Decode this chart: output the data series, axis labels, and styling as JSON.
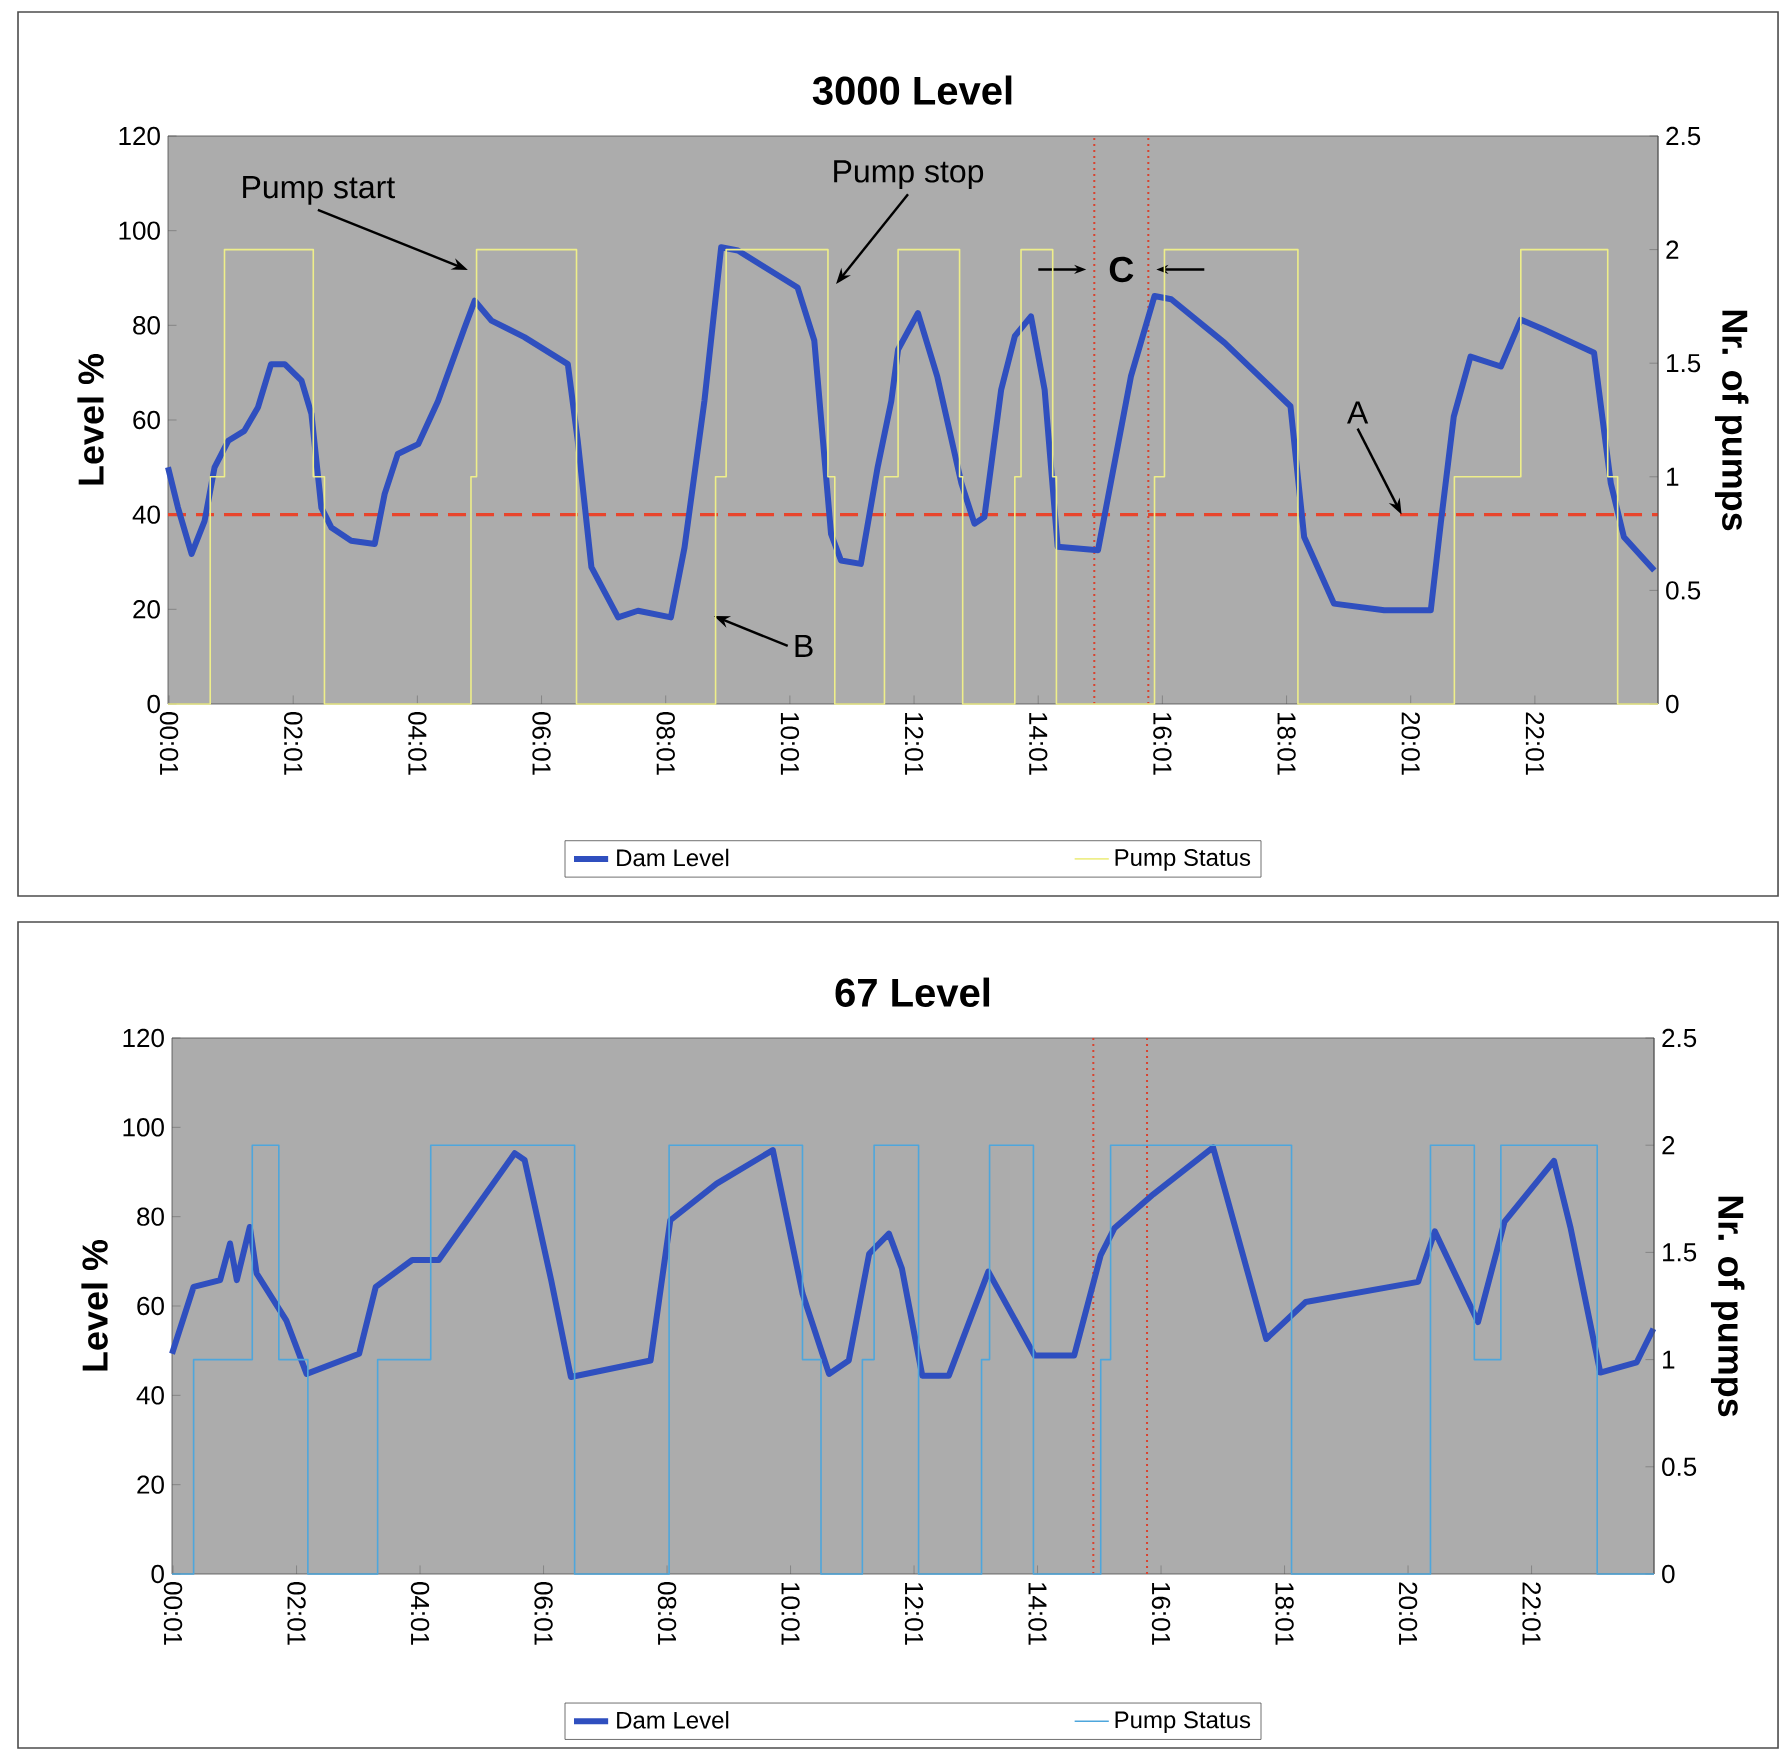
{
  "chart_data": [
    {
      "type": "line",
      "title": "3000 Level",
      "ylabel": "Level %",
      "y2label": "Nr. of pumps",
      "xlim": [
        0,
        24
      ],
      "xticks": [
        {
          "value": 0.0167,
          "label": "00:01"
        },
        {
          "value": 2.0167,
          "label": "02:01"
        },
        {
          "value": 4.0167,
          "label": "04:01"
        },
        {
          "value": 6.0167,
          "label": "06:01"
        },
        {
          "value": 8.0167,
          "label": "08:01"
        },
        {
          "value": 10.0167,
          "label": "10:01"
        },
        {
          "value": 12.0167,
          "label": "12:01"
        },
        {
          "value": 14.0167,
          "label": "14:01"
        },
        {
          "value": 16.0167,
          "label": "16:01"
        },
        {
          "value": 18.0167,
          "label": "18:01"
        },
        {
          "value": 20.0167,
          "label": "20:01"
        },
        {
          "value": 22.0167,
          "label": "22:01"
        }
      ],
      "ylim": [
        0,
        120
      ],
      "yticks": [
        0,
        20,
        40,
        60,
        80,
        100,
        120
      ],
      "y2lim": [
        0,
        2.5
      ],
      "y2ticks": [
        0,
        0.5,
        1,
        1.5,
        2,
        2.5
      ],
      "legend": "bottom",
      "series": [
        {
          "name": "Dam Level",
          "type": "line",
          "color": "#2f4fbf",
          "x": [
            0,
            0.16,
            0.38,
            0.59,
            0.75,
            0.97,
            1.23,
            1.45,
            1.66,
            1.88,
            2.15,
            2.31,
            2.47,
            2.63,
            2.95,
            3.33,
            3.49,
            3.7,
            4.03,
            4.35,
            4.78,
            4.94,
            5.21,
            5.74,
            6.44,
            6.6,
            6.82,
            7.25,
            7.57,
            8.1,
            8.32,
            8.64,
            8.91,
            9.18,
            10.14,
            10.41,
            10.68,
            10.84,
            11.16,
            11.43,
            11.65,
            11.76,
            12.08,
            12.39,
            12.78,
            12.99,
            13.15,
            13.42,
            13.64,
            13.9,
            14.12,
            14.33,
            14.98,
            15.51,
            15.89,
            16.16,
            17.02,
            18.08,
            18.3,
            18.78,
            19.59,
            20.34,
            20.5,
            20.71,
            20.98,
            21.47,
            21.79,
            22.16,
            22.97,
            23.24,
            23.45,
            23.94
          ],
          "values": [
            50,
            41.5,
            31.7,
            38.7,
            50,
            55.6,
            57.7,
            62.7,
            71.8,
            71.8,
            68.3,
            61.3,
            41.5,
            37.3,
            34.5,
            33.8,
            44.4,
            52.8,
            54.9,
            64,
            79.6,
            85.2,
            81,
            77.5,
            71.8,
            55.6,
            28.9,
            18.3,
            19.7,
            18.3,
            33.1,
            64,
            96.5,
            95.8,
            88,
            76.8,
            35.9,
            30.3,
            29.6,
            50,
            64,
            74.9,
            82.6,
            69.2,
            46.6,
            38.1,
            39.5,
            66.4,
            77.7,
            81.9,
            66.4,
            33.2,
            32.5,
            69.2,
            86.2,
            85.5,
            76.3,
            62.9,
            35.3,
            21.2,
            19.8,
            19.8,
            38.1,
            60.7,
            73.4,
            71.3,
            81.2,
            79.1,
            74.2,
            46.6,
            35.3,
            28.2
          ]
        },
        {
          "name": "Pump Status",
          "type": "step",
          "axis": "y2",
          "color": "#eeee8a",
          "x": [
            0,
            0.68,
            0.91,
            2.34,
            2.52,
            4.88,
            4.97,
            6.58,
            8.82,
            8.99,
            10.63,
            10.74,
            11.54,
            11.76,
            12.75,
            12.8,
            13.64,
            13.74,
            14.25,
            14.31,
            15.89,
            16.05,
            18.2,
            20.72,
            21.79,
            23.19,
            23.35,
            24
          ],
          "values": [
            0,
            1,
            2,
            1,
            0,
            1,
            2,
            0,
            1,
            2,
            1,
            0,
            1,
            2,
            1,
            0,
            1,
            2,
            1,
            0,
            1,
            2,
            0,
            1,
            2,
            1,
            0,
            0
          ]
        }
      ],
      "ref_lines": [
        {
          "axis": "y",
          "value": 40,
          "color": "#e8452c",
          "line_style": "dashed"
        },
        {
          "axis": "x",
          "value": 14.92,
          "color": "#d9432f",
          "line_style": "dotted"
        },
        {
          "axis": "x",
          "value": 15.79,
          "color": "#d9432f",
          "line_style": "dotted"
        }
      ],
      "annotations": [
        {
          "text": "Pump start",
          "x": 4.83,
          "y": 91.7
        },
        {
          "text": "Pump stop",
          "x": 10.76,
          "y": 88.7
        },
        {
          "text": "A",
          "x": 19.87,
          "y": 40
        },
        {
          "text": "B",
          "x": 8.79,
          "y": 18.6
        },
        "C"
      ]
    },
    {
      "type": "line",
      "title": "67 Level",
      "ylabel": "Level %",
      "y2label": "Nr. of pumps",
      "xlim": [
        0,
        24
      ],
      "xticks": [
        {
          "value": 0.0167,
          "label": "00:01"
        },
        {
          "value": 2.0167,
          "label": "02:01"
        },
        {
          "value": 4.0167,
          "label": "04:01"
        },
        {
          "value": 6.0167,
          "label": "06:01"
        },
        {
          "value": 8.0167,
          "label": "08:01"
        },
        {
          "value": 10.0167,
          "label": "10:01"
        },
        {
          "value": 12.0167,
          "label": "12:01"
        },
        {
          "value": 14.0167,
          "label": "14:01"
        },
        {
          "value": 16.0167,
          "label": "16:01"
        },
        {
          "value": 18.0167,
          "label": "18:01"
        },
        {
          "value": 20.0167,
          "label": "20:01"
        },
        {
          "value": 22.0167,
          "label": "22:01"
        }
      ],
      "ylim": [
        0,
        120
      ],
      "yticks": [
        0,
        20,
        40,
        60,
        80,
        100,
        120
      ],
      "y2lim": [
        0,
        2.5
      ],
      "y2ticks": [
        0,
        0.5,
        1,
        1.5,
        2,
        2.5
      ],
      "legend": "bottom",
      "series": [
        {
          "name": "Dam Level",
          "type": "line",
          "color": "#2f4fbf",
          "x": [
            0,
            0.35,
            0.78,
            0.94,
            1.05,
            1.26,
            1.37,
            1.85,
            2.18,
            3.03,
            3.3,
            3.89,
            4.32,
            5.55,
            5.71,
            6.14,
            6.46,
            7.75,
            8.07,
            8.82,
            9.73,
            10.21,
            10.64,
            10.96,
            11.29,
            11.61,
            11.82,
            12.15,
            12.58,
            13.22,
            13.97,
            14.61,
            15.04,
            15.26,
            15.89,
            16.86,
            17.72,
            18.36,
            20.18,
            20.45,
            21.15,
            21.58,
            22.38,
            22.65,
            23.13,
            23.72,
            23.99
          ],
          "values": [
            49.3,
            64.3,
            65.8,
            74,
            65.8,
            77.7,
            67.3,
            56.8,
            44.8,
            49.3,
            64.3,
            70.3,
            70.3,
            94.2,
            92.7,
            65.8,
            44.1,
            47.8,
            79.2,
            87.4,
            94.9,
            62.8,
            44.8,
            47.8,
            71.7,
            76.2,
            68.4,
            44.4,
            44.4,
            67.7,
            48.9,
            48.9,
            71.4,
            77.4,
            85,
            95.5,
            52.6,
            60.9,
            65.4,
            76.7,
            56.4,
            78.9,
            92.5,
            77.4,
            45.1,
            47.4,
            54.9
          ]
        },
        {
          "name": "Pump Status",
          "type": "step",
          "axis": "y2",
          "color": "#4ea6dc",
          "x": [
            0,
            0.35,
            1.3,
            1.73,
            2.2,
            3.33,
            4.19,
            6.52,
            8.05,
            10.21,
            10.51,
            11.18,
            11.37,
            12.09,
            13.11,
            13.24,
            13.95,
            15.04,
            15.2,
            18.13,
            20.38,
            21.09,
            21.52,
            23.08,
            24
          ],
          "values": [
            0,
            1,
            2,
            1,
            0,
            1,
            2,
            0,
            2,
            1,
            0,
            1,
            2,
            0,
            1,
            2,
            0,
            1,
            2,
            0,
            2,
            1,
            2,
            0,
            0
          ]
        }
      ],
      "ref_lines": [
        {
          "axis": "x",
          "value": 14.92,
          "color": "#d9432f",
          "line_style": "dotted"
        },
        {
          "axis": "x",
          "value": 15.79,
          "color": "#d9432f",
          "line_style": "dotted"
        }
      ]
    }
  ]
}
